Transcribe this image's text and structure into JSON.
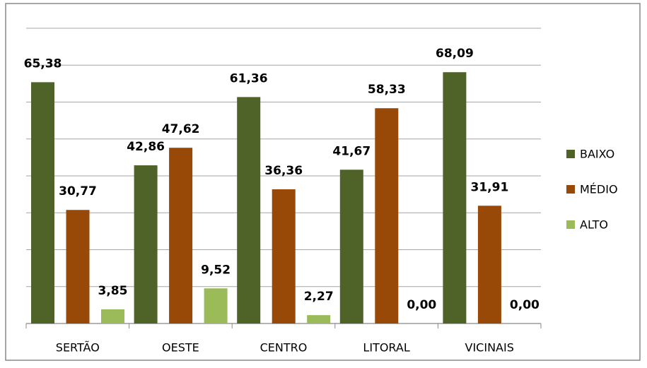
{
  "chart_data": {
    "type": "bar",
    "categories": [
      "SERTÃO",
      "OESTE",
      "CENTRO",
      "LITORAL",
      "VICINAIS"
    ],
    "series": [
      {
        "name": "BAIXO",
        "color": "#4f6228",
        "values": [
          65.38,
          42.86,
          61.36,
          41.67,
          68.09
        ],
        "value_labels": [
          "65,38",
          "42,86",
          "61,36",
          "41,67",
          "68,09"
        ]
      },
      {
        "name": "MÉDIO",
        "color": "#984807",
        "values": [
          30.77,
          47.62,
          36.36,
          58.33,
          31.91
        ],
        "value_labels": [
          "30,77",
          "47,62",
          "36,36",
          "58,33",
          "31,91"
        ]
      },
      {
        "name": "ALTO",
        "color": "#9bbb59",
        "values": [
          3.85,
          9.52,
          2.27,
          0,
          0
        ],
        "value_labels": [
          "3,85",
          "9,52",
          "2,27",
          "0,00",
          "0,00"
        ]
      }
    ],
    "ylim": [
      0,
      80
    ],
    "yticks": [
      0,
      10,
      20,
      30,
      40,
      50,
      60,
      70,
      80
    ],
    "grid": true,
    "legend": "right"
  }
}
